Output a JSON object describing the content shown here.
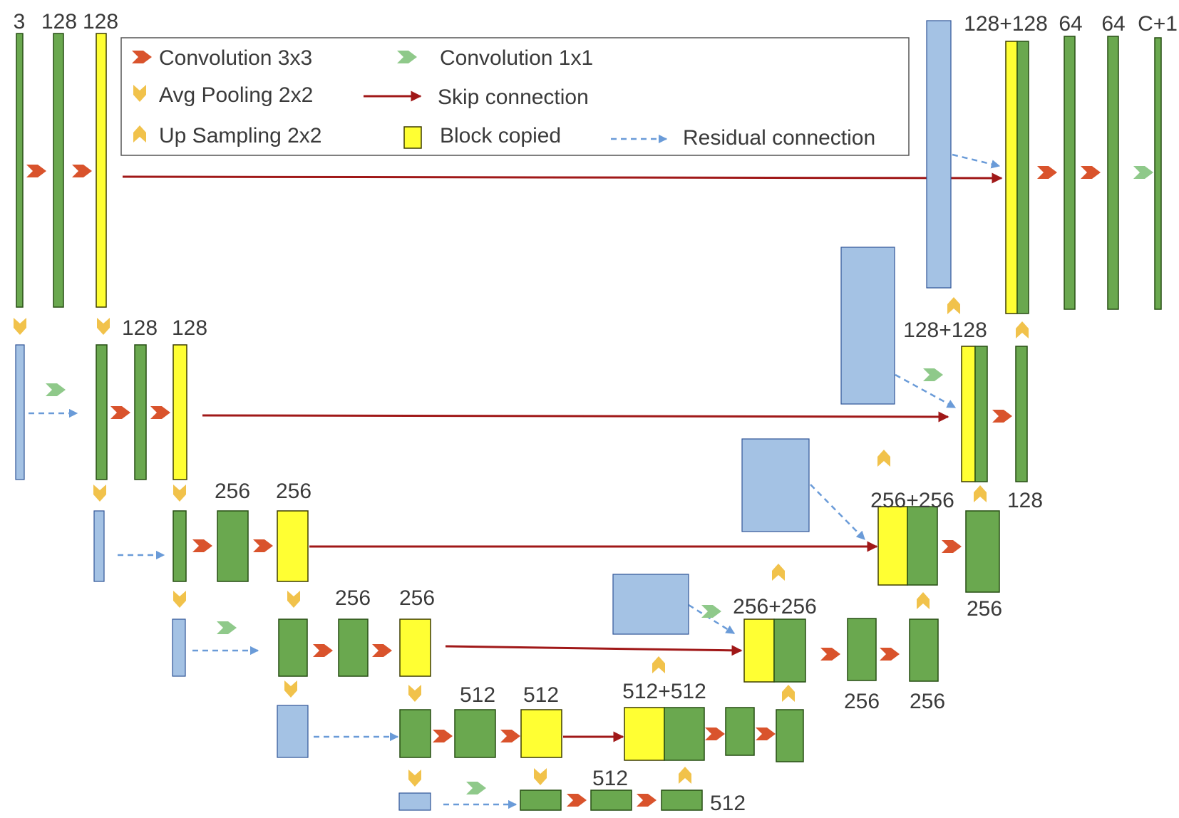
{
  "colors": {
    "conv3x3": "#d9532c",
    "conv1x1": "#8fc98a",
    "pool": "#f1c24b",
    "block_green": "#6aa84f",
    "block_yellow": "#ffff33",
    "block_blue": "#a4c2e4",
    "skip": "#a01818",
    "residual": "#6a9bd8"
  },
  "legend": {
    "conv3x3": "Convolution 3x3",
    "conv1x1": "Convolution 1x1",
    "avgpool": "Avg Pooling 2x2",
    "skip": "Skip connection",
    "upsample": "Up Sampling 2x2",
    "block_copied": "Block copied",
    "residual": "Residual connection"
  },
  "labels": {
    "l1_in": "3",
    "l1_c1": "128",
    "l1_c2": "128",
    "l1_dec_cat": "128+128",
    "l1_dec_a": "64",
    "l1_dec_b": "64",
    "l1_out": "C+1",
    "l2_a": "128",
    "l2_b": "128",
    "l2_dec_cat": "128+128",
    "l2_dec_out": "128",
    "l3_a": "256",
    "l3_b": "256",
    "l3_dec_cat": "256+256",
    "l3_dec_out": "256",
    "l4_a": "256",
    "l4_b": "256",
    "l4_dec_cat": "256+256",
    "l4_dec_a": "256",
    "l4_dec_b": "256",
    "l5_a": "512",
    "l5_b": "512",
    "l5_dec_cat": "512+512",
    "l6_a": "512",
    "l6_b": "512"
  }
}
